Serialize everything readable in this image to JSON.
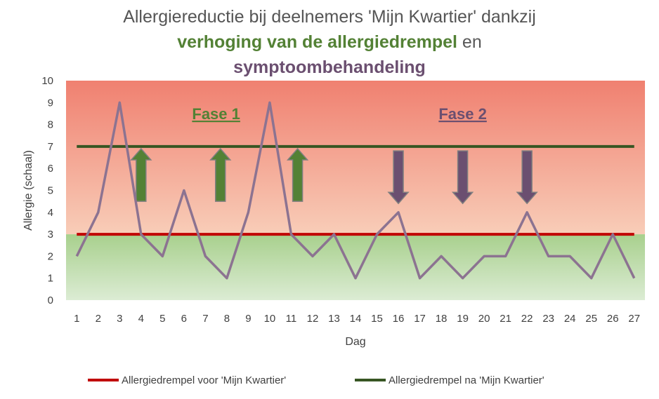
{
  "chart_data": {
    "type": "line",
    "title": {
      "line1": "Allergiereductie bij deelnemers 'Mijn Kwartier' dankzij",
      "line2_bold": "verhoging van de allergiedrempel",
      "line2_rest": " en",
      "line3_bold": "symptoombehandeling"
    },
    "xlabel": "Dag",
    "ylabel": "Allergie (schaal)",
    "ylim": [
      0,
      10
    ],
    "yticks": [
      "0",
      "1",
      "2",
      "3",
      "4",
      "5",
      "6",
      "7",
      "8",
      "9",
      "10"
    ],
    "categories": [
      "1",
      "2",
      "3",
      "4",
      "5",
      "6",
      "7",
      "8",
      "9",
      "10",
      "11",
      "12",
      "13",
      "14",
      "15",
      "16",
      "17",
      "18",
      "19",
      "20",
      "21",
      "22",
      "23",
      "24",
      "25",
      "26",
      "27"
    ],
    "series": [
      {
        "values": [
          2,
          4,
          9,
          3,
          2,
          5,
          2,
          1,
          4,
          9,
          3,
          2,
          3,
          1,
          3,
          4,
          1,
          2,
          1,
          2,
          2,
          4,
          2,
          2,
          1,
          3,
          1
        ],
        "color": "#8c7391"
      }
    ],
    "thresholds": [
      {
        "name": "Allergiedrempel voor 'Mijn Kwartier'",
        "value": 3,
        "color": "#c00000"
      },
      {
        "name": "Allergiedrempel na 'Mijn Kwartier'",
        "value": 7,
        "color": "#375623"
      }
    ],
    "phases": [
      {
        "label": "Fase 1",
        "color": "#538135",
        "center_x": 7.5
      },
      {
        "label": "Fase 2",
        "color": "#6b4f70",
        "center_x": 19
      }
    ],
    "up_arrows": {
      "x": [
        4,
        7.7,
        11.3
      ],
      "from": 4.5,
      "to": 6.9,
      "color": "#538135"
    },
    "down_arrows": {
      "x": [
        16,
        19,
        22
      ],
      "from": 6.8,
      "to": 4.4,
      "color": "#6b4f70"
    },
    "bands": {
      "danger_top": "#f08070",
      "danger_bottom": "#f8cdb8",
      "safe_top": "#a8d08d",
      "safe_bottom": "#dcecd4"
    },
    "grid": false,
    "legend_position": "bottom"
  }
}
